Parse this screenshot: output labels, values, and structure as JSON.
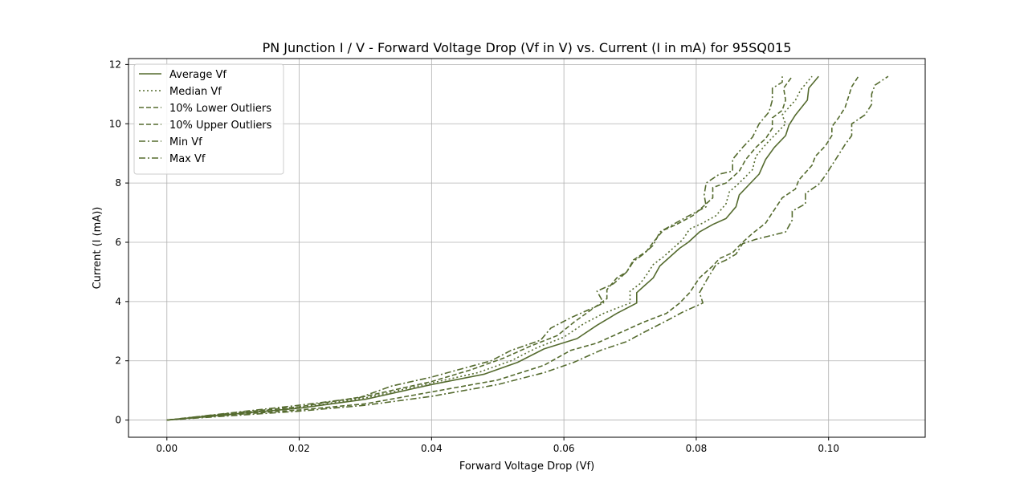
{
  "chart_data": {
    "type": "line",
    "title": "PN Junction I / V - Forward Voltage Drop (Vf in V) vs. Current (I in mA) for 95SQ015",
    "xlabel": "Forward Voltage Drop (Vf)",
    "ylabel": "Current (I (mA))",
    "xlim": [
      -0.0058,
      0.1146
    ],
    "ylim": [
      -0.58,
      12.2
    ],
    "xticks": [
      0.0,
      0.02,
      0.04,
      0.06,
      0.08,
      0.1
    ],
    "xtick_labels": [
      "0.00",
      "0.02",
      "0.04",
      "0.06",
      "0.08",
      "0.10"
    ],
    "yticks": [
      0,
      2,
      4,
      6,
      8,
      10,
      12
    ],
    "ytick_labels": [
      "0",
      "2",
      "4",
      "6",
      "8",
      "10",
      "12"
    ],
    "grid": true,
    "legend_position": "top-left",
    "color": "#556b2f",
    "series": [
      {
        "name": "Average Vf",
        "dash": "solid",
        "points": [
          [
            0,
            0
          ],
          [
            0.01,
            0.2
          ],
          [
            0.02,
            0.4
          ],
          [
            0.03,
            0.7
          ],
          [
            0.04,
            1.2
          ],
          [
            0.048,
            1.55
          ],
          [
            0.053,
            1.95
          ],
          [
            0.057,
            2.4
          ],
          [
            0.062,
            2.75
          ],
          [
            0.065,
            3.2
          ],
          [
            0.068,
            3.6
          ],
          [
            0.071,
            3.95
          ],
          [
            0.071,
            4.3
          ],
          [
            0.072,
            4.5
          ],
          [
            0.0735,
            4.8
          ],
          [
            0.0745,
            5.2
          ],
          [
            0.076,
            5.5
          ],
          [
            0.0775,
            5.8
          ],
          [
            0.0788,
            6.0
          ],
          [
            0.0805,
            6.35
          ],
          [
            0.0825,
            6.6
          ],
          [
            0.0845,
            6.8
          ],
          [
            0.086,
            7.2
          ],
          [
            0.0865,
            7.6
          ],
          [
            0.088,
            7.95
          ],
          [
            0.0895,
            8.3
          ],
          [
            0.0905,
            8.8
          ],
          [
            0.0918,
            9.2
          ],
          [
            0.0935,
            9.6
          ],
          [
            0.094,
            9.95
          ],
          [
            0.095,
            10.3
          ],
          [
            0.0968,
            10.8
          ],
          [
            0.097,
            11.2
          ],
          [
            0.0985,
            11.6
          ]
        ]
      },
      {
        "name": "Median Vf",
        "dash": "dotted",
        "points": [
          [
            0,
            0
          ],
          [
            0.01,
            0.22
          ],
          [
            0.02,
            0.42
          ],
          [
            0.03,
            0.75
          ],
          [
            0.04,
            1.25
          ],
          [
            0.047,
            1.6
          ],
          [
            0.052,
            2.0
          ],
          [
            0.056,
            2.45
          ],
          [
            0.06,
            2.8
          ],
          [
            0.063,
            3.25
          ],
          [
            0.066,
            3.6
          ],
          [
            0.07,
            3.95
          ],
          [
            0.07,
            4.35
          ],
          [
            0.0715,
            4.6
          ],
          [
            0.0725,
            4.9
          ],
          [
            0.0735,
            5.25
          ],
          [
            0.075,
            5.5
          ],
          [
            0.0765,
            5.8
          ],
          [
            0.078,
            6.1
          ],
          [
            0.079,
            6.45
          ],
          [
            0.081,
            6.65
          ],
          [
            0.083,
            6.9
          ],
          [
            0.0845,
            7.3
          ],
          [
            0.085,
            7.7
          ],
          [
            0.0865,
            8.0
          ],
          [
            0.0885,
            8.45
          ],
          [
            0.089,
            8.9
          ],
          [
            0.0905,
            9.3
          ],
          [
            0.092,
            9.65
          ],
          [
            0.0935,
            10.0
          ],
          [
            0.093,
            10.3
          ],
          [
            0.095,
            10.8
          ],
          [
            0.0958,
            11.15
          ],
          [
            0.0975,
            11.6
          ]
        ]
      },
      {
        "name": "10% Lower Outliers",
        "dash": "dashed",
        "points": [
          [
            0,
            0
          ],
          [
            0.01,
            0.24
          ],
          [
            0.02,
            0.45
          ],
          [
            0.03,
            0.8
          ],
          [
            0.04,
            1.3
          ],
          [
            0.046,
            1.7
          ],
          [
            0.051,
            2.1
          ],
          [
            0.055,
            2.5
          ],
          [
            0.059,
            2.85
          ],
          [
            0.0615,
            3.3
          ],
          [
            0.064,
            3.7
          ],
          [
            0.0665,
            4.1
          ],
          [
            0.0665,
            4.4
          ],
          [
            0.068,
            4.8
          ],
          [
            0.0695,
            5.0
          ],
          [
            0.0705,
            5.4
          ],
          [
            0.0725,
            5.7
          ],
          [
            0.0735,
            6.0
          ],
          [
            0.075,
            6.4
          ],
          [
            0.077,
            6.6
          ],
          [
            0.0795,
            6.9
          ],
          [
            0.081,
            7.2
          ],
          [
            0.0825,
            7.5
          ],
          [
            0.0825,
            7.85
          ],
          [
            0.0845,
            8.0
          ],
          [
            0.0865,
            8.4
          ],
          [
            0.0875,
            8.8
          ],
          [
            0.089,
            9.2
          ],
          [
            0.0905,
            9.5
          ],
          [
            0.0915,
            9.85
          ],
          [
            0.0915,
            10.2
          ],
          [
            0.093,
            10.45
          ],
          [
            0.0935,
            10.8
          ],
          [
            0.0932,
            11.2
          ],
          [
            0.0945,
            11.6
          ]
        ]
      },
      {
        "name": "10% Upper Outliers",
        "dash": "dashed",
        "points": [
          [
            0,
            0
          ],
          [
            0.01,
            0.18
          ],
          [
            0.02,
            0.34
          ],
          [
            0.03,
            0.55
          ],
          [
            0.04,
            0.95
          ],
          [
            0.05,
            1.35
          ],
          [
            0.057,
            1.85
          ],
          [
            0.061,
            2.35
          ],
          [
            0.065,
            2.6
          ],
          [
            0.069,
            3.0
          ],
          [
            0.072,
            3.3
          ],
          [
            0.0755,
            3.6
          ],
          [
            0.0775,
            3.95
          ],
          [
            0.079,
            4.3
          ],
          [
            0.0805,
            4.8
          ],
          [
            0.0825,
            5.2
          ],
          [
            0.0835,
            5.45
          ],
          [
            0.0855,
            5.65
          ],
          [
            0.087,
            6.0
          ],
          [
            0.0885,
            6.3
          ],
          [
            0.0905,
            6.65
          ],
          [
            0.0915,
            7.0
          ],
          [
            0.093,
            7.5
          ],
          [
            0.095,
            7.8
          ],
          [
            0.0955,
            8.1
          ],
          [
            0.0975,
            8.6
          ],
          [
            0.098,
            8.9
          ],
          [
            0.0995,
            9.25
          ],
          [
            0.1005,
            9.6
          ],
          [
            0.1005,
            9.9
          ],
          [
            0.1015,
            10.2
          ],
          [
            0.1025,
            10.55
          ],
          [
            0.103,
            10.9
          ],
          [
            0.1035,
            11.25
          ],
          [
            0.1045,
            11.6
          ]
        ]
      },
      {
        "name": "Min Vf",
        "dash": "dashdot",
        "points": [
          [
            0,
            0
          ],
          [
            0.01,
            0.25
          ],
          [
            0.02,
            0.5
          ],
          [
            0.029,
            0.75
          ],
          [
            0.034,
            1.15
          ],
          [
            0.04,
            1.45
          ],
          [
            0.049,
            2.0
          ],
          [
            0.052,
            2.35
          ],
          [
            0.0565,
            2.7
          ],
          [
            0.058,
            3.1
          ],
          [
            0.061,
            3.45
          ],
          [
            0.064,
            3.75
          ],
          [
            0.066,
            3.95
          ],
          [
            0.065,
            4.35
          ],
          [
            0.0675,
            4.6
          ],
          [
            0.0695,
            5.0
          ],
          [
            0.0705,
            5.35
          ],
          [
            0.072,
            5.6
          ],
          [
            0.0735,
            5.9
          ],
          [
            0.0745,
            6.35
          ],
          [
            0.0765,
            6.6
          ],
          [
            0.0785,
            6.85
          ],
          [
            0.0815,
            7.2
          ],
          [
            0.0812,
            7.6
          ],
          [
            0.0815,
            8.0
          ],
          [
            0.0835,
            8.3
          ],
          [
            0.0855,
            8.4
          ],
          [
            0.0855,
            8.8
          ],
          [
            0.087,
            9.2
          ],
          [
            0.0885,
            9.55
          ],
          [
            0.0895,
            10.0
          ],
          [
            0.091,
            10.4
          ],
          [
            0.0915,
            10.8
          ],
          [
            0.0915,
            11.2
          ],
          [
            0.093,
            11.4
          ],
          [
            0.093,
            11.6
          ]
        ]
      },
      {
        "name": "Max Vf",
        "dash": "dashdot",
        "points": [
          [
            0,
            0
          ],
          [
            0.01,
            0.15
          ],
          [
            0.02,
            0.3
          ],
          [
            0.03,
            0.5
          ],
          [
            0.04,
            0.8
          ],
          [
            0.05,
            1.2
          ],
          [
            0.057,
            1.6
          ],
          [
            0.0615,
            1.95
          ],
          [
            0.0655,
            2.35
          ],
          [
            0.0695,
            2.65
          ],
          [
            0.072,
            2.95
          ],
          [
            0.0755,
            3.35
          ],
          [
            0.078,
            3.65
          ],
          [
            0.081,
            3.95
          ],
          [
            0.0805,
            4.3
          ],
          [
            0.0815,
            4.7
          ],
          [
            0.083,
            5.25
          ],
          [
            0.0845,
            5.4
          ],
          [
            0.086,
            5.6
          ],
          [
            0.087,
            5.95
          ],
          [
            0.089,
            6.1
          ],
          [
            0.0935,
            6.35
          ],
          [
            0.0945,
            6.75
          ],
          [
            0.0945,
            7.05
          ],
          [
            0.0965,
            7.3
          ],
          [
            0.0965,
            7.65
          ],
          [
            0.0985,
            7.95
          ],
          [
            0.0995,
            8.25
          ],
          [
            0.1005,
            8.6
          ],
          [
            0.1015,
            8.95
          ],
          [
            0.1025,
            9.3
          ],
          [
            0.1035,
            9.6
          ],
          [
            0.1035,
            10.0
          ],
          [
            0.1055,
            10.3
          ],
          [
            0.1065,
            10.65
          ],
          [
            0.1065,
            11.0
          ],
          [
            0.107,
            11.3
          ],
          [
            0.109,
            11.6
          ]
        ]
      }
    ]
  }
}
